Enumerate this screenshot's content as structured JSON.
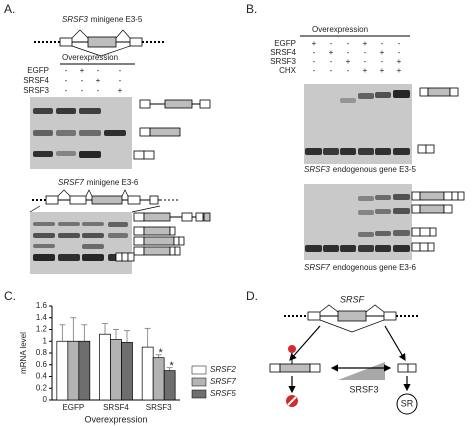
{
  "panels": {
    "A": {
      "label": "A.",
      "top": {
        "gene": "SRSF3",
        "suffix": "minigene E3-5"
      },
      "overexpression": "Overexpression",
      "rows": [
        {
          "label": "EGFP",
          "signs": [
            "-",
            "+",
            "-",
            "-"
          ]
        },
        {
          "label": "SRSF4",
          "signs": [
            "-",
            "-",
            "+",
            "-"
          ]
        },
        {
          "label": "SRSF3",
          "signs": [
            "-",
            "-",
            "-",
            "+"
          ]
        }
      ],
      "bottom": {
        "gene": "SRSF7",
        "suffix": "minigene E3-6"
      }
    },
    "B": {
      "label": "B.",
      "overexpression": "Overexpression",
      "rows": [
        {
          "label": "EGFP",
          "signs": [
            "+",
            "-",
            "-",
            "+",
            "-",
            "-"
          ]
        },
        {
          "label": "SRSF4",
          "signs": [
            "-",
            "+",
            "-",
            "-",
            "+",
            "-"
          ]
        },
        {
          "label": "SRSF3",
          "signs": [
            "-",
            "-",
            "+",
            "-",
            "-",
            "+"
          ]
        },
        {
          "label": "CHX",
          "signs": [
            "-",
            "-",
            "-",
            "+",
            "+",
            "+"
          ]
        }
      ],
      "top": {
        "gene": "SRSF3",
        "suffix": "endogenous gene E3-5"
      },
      "bottom": {
        "gene": "SRSF7",
        "suffix": "endogenous gene E3-6"
      }
    },
    "C": {
      "label": "C."
    },
    "D": {
      "label": "D.",
      "gene": "SRSF",
      "factor": "SRSF3",
      "pathway": "SR"
    }
  },
  "chart_data": {
    "type": "bar",
    "y_label": "mRNA level",
    "x_label": "Overexpression",
    "categories": [
      "EGFP",
      "SRSF4",
      "SRSF3"
    ],
    "series": [
      {
        "name": "SRSF2",
        "color": "#ffffff",
        "values": [
          1.0,
          1.12,
          0.9
        ],
        "errors": [
          0.28,
          0.18,
          0.32
        ]
      },
      {
        "name": "SRSF7",
        "color": "#b3b3b3",
        "values": [
          1.0,
          1.03,
          0.72
        ],
        "errors": [
          0.4,
          0.17,
          0.05
        ]
      },
      {
        "name": "SRSF5",
        "color": "#6e6e6e",
        "values": [
          1.0,
          0.98,
          0.5
        ],
        "errors": [
          0.28,
          0.2,
          0.05
        ]
      }
    ],
    "ylim": [
      0,
      1.6
    ],
    "yticks": [
      0,
      0.2,
      0.4,
      0.6,
      0.8,
      1,
      1.2,
      1.4,
      1.6
    ],
    "annotations": [
      "*",
      "*"
    ]
  }
}
